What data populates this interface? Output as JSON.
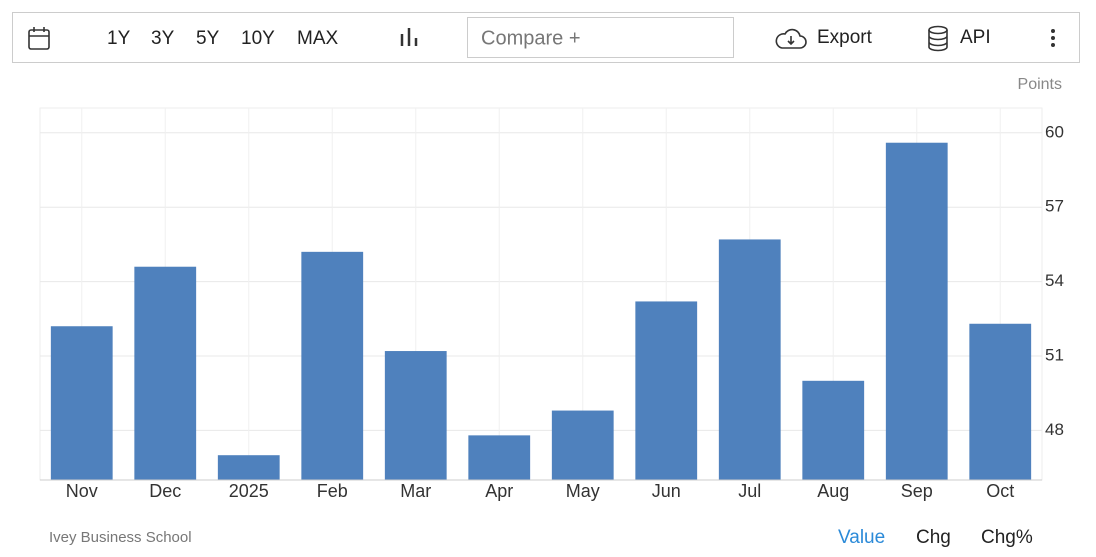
{
  "toolbar": {
    "ranges": [
      "1Y",
      "3Y",
      "5Y",
      "10Y",
      "MAX"
    ],
    "compare": "Compare +",
    "export": "Export",
    "api": "API"
  },
  "chart_data": {
    "type": "bar",
    "unit": "Points",
    "categories": [
      "Nov",
      "Dec",
      "2025",
      "Feb",
      "Mar",
      "Apr",
      "May",
      "Jun",
      "Jul",
      "Aug",
      "Sep",
      "Oct"
    ],
    "values": [
      52.2,
      54.6,
      47.0,
      55.2,
      51.2,
      47.8,
      48.8,
      53.2,
      55.7,
      50.0,
      59.6,
      52.3
    ],
    "color": "#4f81bd",
    "ylim": [
      46,
      61
    ],
    "yticks": [
      48,
      51,
      54,
      57,
      60
    ],
    "grid": true
  },
  "footer": {
    "source": "Ivey Business School",
    "tabs": [
      "Value",
      "Chg",
      "Chg%"
    ]
  }
}
